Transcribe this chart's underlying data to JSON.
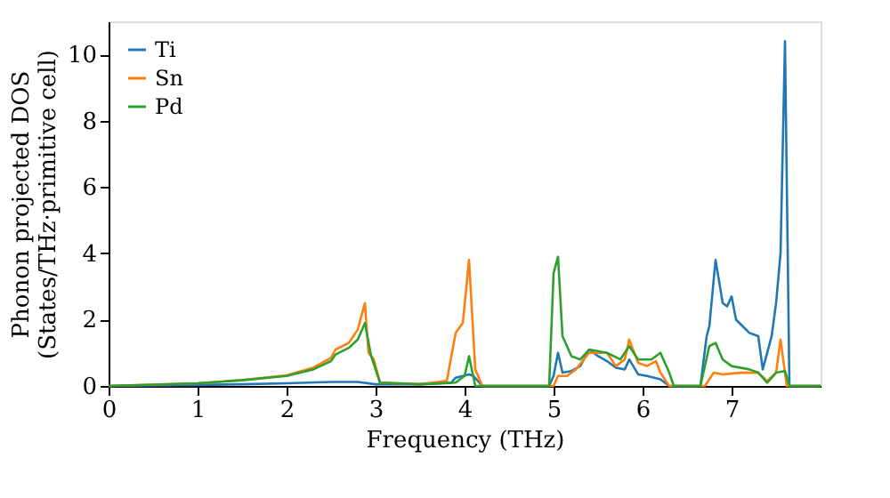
{
  "chart_data": {
    "type": "line",
    "xlabel": "Frequency (THz)",
    "ylabel": "Phonon projected DOS\n(States/THz·primitive cell)",
    "xlim": [
      0,
      8
    ],
    "ylim": [
      0,
      11
    ],
    "xticks": [
      0,
      1,
      2,
      3,
      4,
      5,
      6,
      7
    ],
    "yticks": [
      0,
      2,
      4,
      6,
      8,
      10
    ],
    "grid": false,
    "legend": "top left",
    "marker": "none",
    "line_style": "solid",
    "series": [
      {
        "name": "Ti",
        "color": "#1f77b4",
        "x": [
          0,
          1,
          1.5,
          2,
          2.5,
          2.8,
          3.0,
          3.5,
          3.85,
          3.9,
          4.05,
          4.1,
          4.2,
          4.95,
          5.0,
          5.05,
          5.1,
          5.2,
          5.3,
          5.4,
          5.5,
          5.6,
          5.7,
          5.8,
          5.85,
          5.95,
          6.05,
          6.2,
          6.3,
          6.65,
          6.72,
          6.75,
          6.82,
          6.9,
          6.95,
          7.0,
          7.05,
          7.2,
          7.3,
          7.35,
          7.45,
          7.5,
          7.55,
          7.6,
          7.65,
          8
        ],
        "values": [
          0,
          0.03,
          0.05,
          0.08,
          0.12,
          0.12,
          0.05,
          0.05,
          0.1,
          0.25,
          0.35,
          0.3,
          0,
          0,
          0.3,
          1.0,
          0.4,
          0.45,
          0.6,
          1.1,
          0.9,
          0.75,
          0.55,
          0.5,
          0.8,
          0.35,
          0.3,
          0.2,
          0,
          0,
          1.5,
          1.8,
          3.8,
          2.5,
          2.4,
          2.7,
          2.0,
          1.6,
          1.5,
          0.5,
          1.5,
          2.5,
          4.0,
          10.4,
          0,
          0
        ]
      },
      {
        "name": "Sn",
        "color": "#ff7f0e",
        "x": [
          0,
          1,
          1.5,
          2,
          2.3,
          2.5,
          2.55,
          2.7,
          2.8,
          2.88,
          2.92,
          2.98,
          3.05,
          3.5,
          3.8,
          3.9,
          3.98,
          4.05,
          4.12,
          4.2,
          5.0,
          5.05,
          5.15,
          5.25,
          5.4,
          5.6,
          5.7,
          5.8,
          5.85,
          5.95,
          6.05,
          6.15,
          6.2,
          6.3,
          6.7,
          6.75,
          6.8,
          6.9,
          7.1,
          7.3,
          7.4,
          7.5,
          7.55,
          7.62,
          8
        ],
        "values": [
          0,
          0.08,
          0.18,
          0.32,
          0.55,
          0.85,
          1.1,
          1.3,
          1.7,
          2.5,
          1.0,
          0.8,
          0.1,
          0.05,
          0.15,
          1.6,
          1.9,
          3.8,
          0.5,
          0,
          0,
          0.3,
          0.3,
          0.5,
          1.0,
          1.0,
          0.6,
          0.8,
          1.4,
          0.7,
          0.6,
          0.75,
          0.4,
          0,
          0,
          0.2,
          0.4,
          0.35,
          0.4,
          0.4,
          0.15,
          0.4,
          1.4,
          0,
          0
        ]
      },
      {
        "name": "Pd",
        "color": "#2ca02c",
        "x": [
          0,
          1,
          1.5,
          2,
          2.3,
          2.5,
          2.55,
          2.7,
          2.8,
          2.88,
          2.95,
          3.05,
          3.5,
          3.9,
          4.0,
          4.05,
          4.12,
          4.95,
          5.0,
          5.05,
          5.1,
          5.2,
          5.3,
          5.4,
          5.6,
          5.75,
          5.85,
          5.95,
          6.1,
          6.2,
          6.3,
          6.35,
          6.65,
          6.75,
          6.82,
          6.9,
          7.0,
          7.2,
          7.3,
          7.4,
          7.5,
          7.6,
          7.65,
          8
        ],
        "values": [
          0,
          0.08,
          0.17,
          0.3,
          0.5,
          0.75,
          0.95,
          1.15,
          1.4,
          1.9,
          0.9,
          0.1,
          0.05,
          0.1,
          0.3,
          0.9,
          0,
          0,
          3.4,
          3.9,
          1.5,
          0.9,
          0.8,
          1.1,
          1.0,
          0.8,
          1.2,
          0.8,
          0.8,
          1.0,
          0.4,
          0,
          0,
          1.2,
          1.3,
          0.8,
          0.6,
          0.5,
          0.4,
          0.1,
          0.4,
          0.45,
          0,
          0
        ]
      }
    ]
  }
}
